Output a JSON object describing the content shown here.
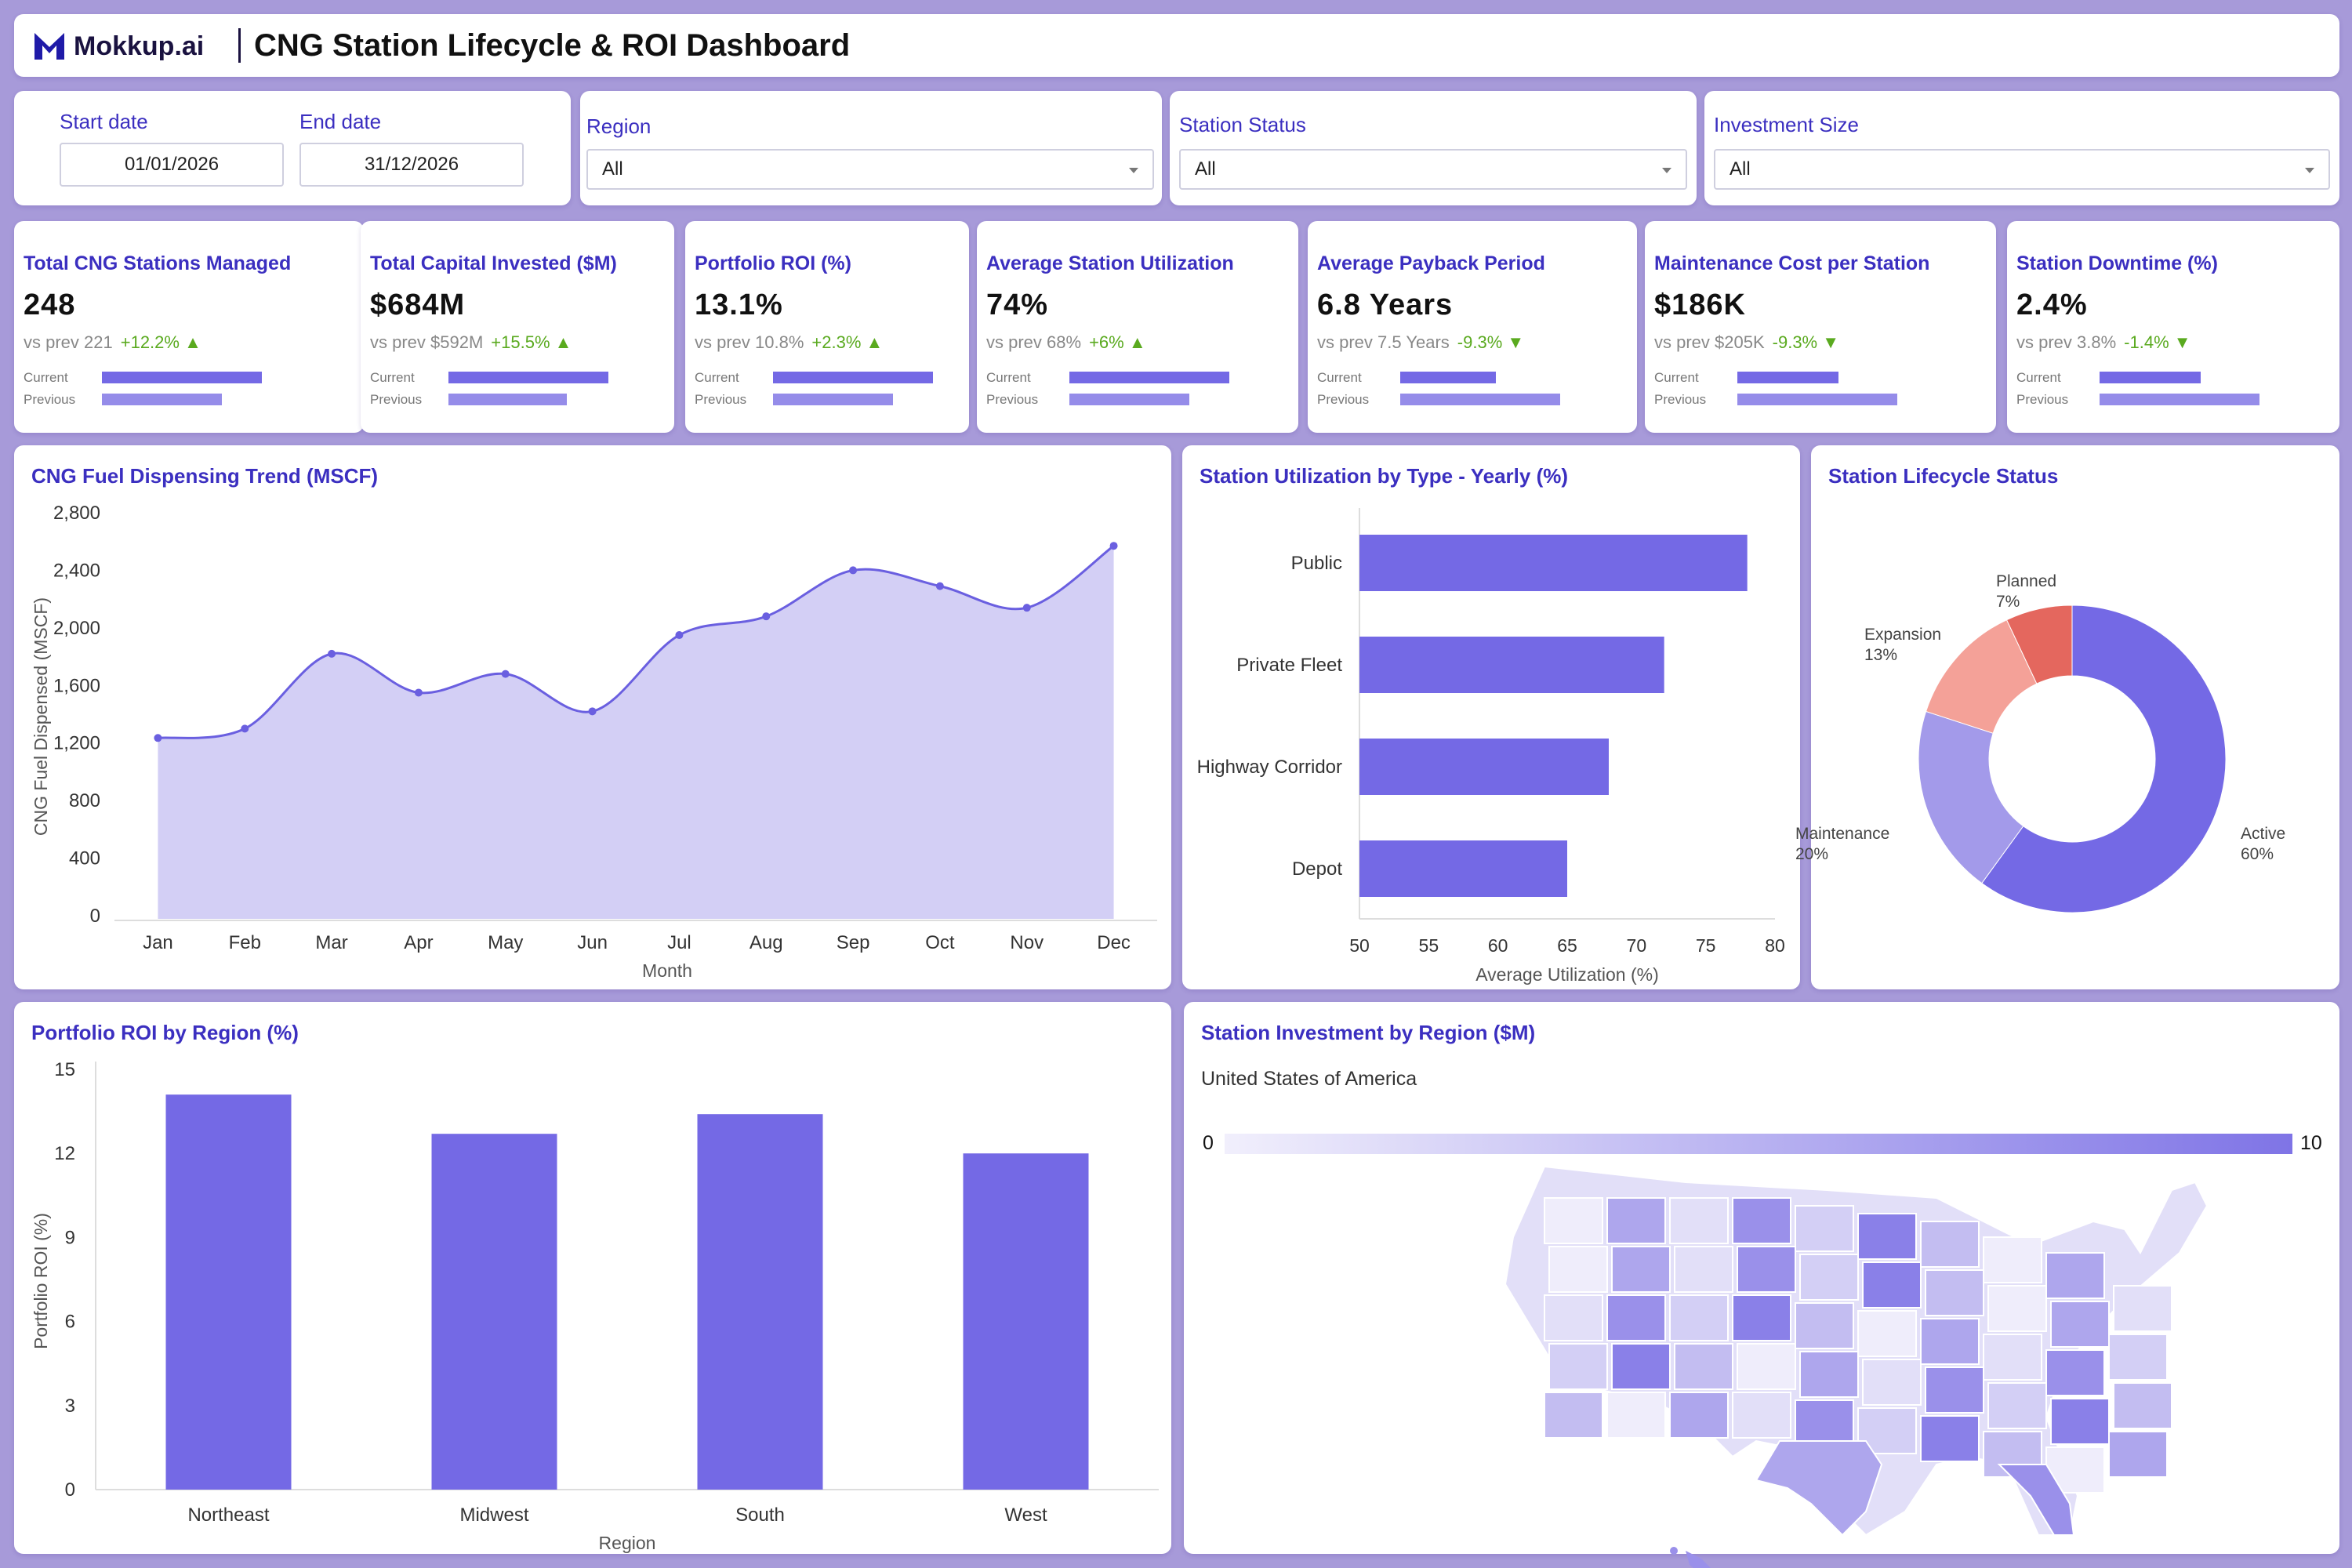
{
  "header": {
    "logo": "Mokkup.ai",
    "title": "CNG Station Lifecycle & ROI Dashboard"
  },
  "filters": {
    "start_date": {
      "label": "Start date",
      "value": "01/01/2026"
    },
    "end_date": {
      "label": "End date",
      "value": "31/12/2026"
    },
    "region": {
      "label": "Region",
      "value": "All"
    },
    "status": {
      "label": "Station Status",
      "value": "All"
    },
    "investment": {
      "label": "Investment Size",
      "value": "All"
    }
  },
  "kpi_labels": {
    "current": "Current",
    "previous": "Previous"
  },
  "kpis": [
    {
      "title": "Total CNG Stations Managed",
      "value": "248",
      "prev": "vs prev 221",
      "delta": "+12.2%",
      "dir": "up",
      "current_ratio": 1.0,
      "previous_ratio": 0.75
    },
    {
      "title": "Total Capital Invested ($M)",
      "value": "$684M",
      "prev": "vs prev $592M",
      "delta": "+15.5%",
      "dir": "up",
      "current_ratio": 1.0,
      "previous_ratio": 0.74
    },
    {
      "title": "Portfolio ROI (%)",
      "value": "13.1%",
      "prev": "vs prev 10.8%",
      "delta": "+2.3%",
      "dir": "up",
      "current_ratio": 1.0,
      "previous_ratio": 0.75
    },
    {
      "title": "Average Station Utilization",
      "value": "74%",
      "prev": "vs prev 68%",
      "delta": "+6%",
      "dir": "up",
      "current_ratio": 1.0,
      "previous_ratio": 0.75
    },
    {
      "title": "Average Payback Period",
      "value": "6.8 Years",
      "prev": "vs prev 7.5 Years",
      "delta": "-9.3%",
      "dir": "down",
      "current_ratio": 0.6,
      "previous_ratio": 1.0
    },
    {
      "title": "Maintenance Cost per Station",
      "value": "$186K",
      "prev": "vs prev $205K",
      "delta": "-9.3%",
      "dir": "down",
      "current_ratio": 0.63,
      "previous_ratio": 1.0
    },
    {
      "title": "Station Downtime (%)",
      "value": "2.4%",
      "prev": "vs prev 3.8%",
      "delta": "-1.4%",
      "dir": "down",
      "current_ratio": 0.63,
      "previous_ratio": 1.0
    }
  ],
  "colors": {
    "accent": "#3b2fc0",
    "bar": "#7469e5",
    "area": "#d3cff5",
    "up": "#5aaa1f"
  },
  "chart_data": [
    {
      "type": "area",
      "title": "CNG Fuel Dispensing Trend (MSCF)",
      "xlabel": "Month",
      "ylabel": "CNG Fuel Dispensed (MSCF)",
      "categories": [
        "Jan",
        "Feb",
        "Mar",
        "Apr",
        "May",
        "Jun",
        "Jul",
        "Aug",
        "Sep",
        "Oct",
        "Nov",
        "Dec"
      ],
      "values": [
        1235,
        1300,
        1820,
        1550,
        1680,
        1420,
        1950,
        2080,
        2400,
        2290,
        2140,
        2570
      ],
      "ylim": [
        0,
        2800
      ],
      "yticks": [
        "0",
        "400",
        "800",
        "1,200",
        "1,600",
        "2,000",
        "2,400",
        "2,800"
      ],
      "grid": false
    },
    {
      "type": "bar",
      "orientation": "horizontal",
      "title": "Station Utilization by Type - Yearly (%)",
      "xlabel": "Average Utilization (%)",
      "categories": [
        "Public",
        "Private Fleet",
        "Highway Corridor",
        "Depot"
      ],
      "values": [
        78,
        72,
        68,
        65
      ],
      "xlim": [
        50,
        80
      ],
      "xticks": [
        "50",
        "55",
        "60",
        "65",
        "70",
        "75",
        "80"
      ]
    },
    {
      "type": "pie",
      "donut": true,
      "title": "Station Lifecycle Status",
      "labels": [
        "Active",
        "Maintenance",
        "Expansion",
        "Planned"
      ],
      "values": [
        60,
        20,
        13,
        7
      ],
      "value_labels": [
        "60%",
        "20%",
        "13%",
        "7%"
      ],
      "colors": [
        "#7469e5",
        "#a39aea",
        "#f4a198",
        "#e4675e"
      ]
    },
    {
      "type": "bar",
      "title": "Portfolio ROI by Region (%)",
      "xlabel": "Region",
      "ylabel": "Portfolio ROI (%)",
      "categories": [
        "Northeast",
        "Midwest",
        "South",
        "West"
      ],
      "values": [
        14.1,
        12.7,
        13.4,
        12.0
      ],
      "ylim": [
        0,
        15
      ],
      "yticks": [
        "0",
        "3",
        "6",
        "9",
        "12",
        "15"
      ]
    },
    {
      "type": "heatmap",
      "title": "Station Investment by Region ($M)",
      "subtitle": "United States of America",
      "scale_min": "0",
      "scale_max": "10"
    }
  ]
}
